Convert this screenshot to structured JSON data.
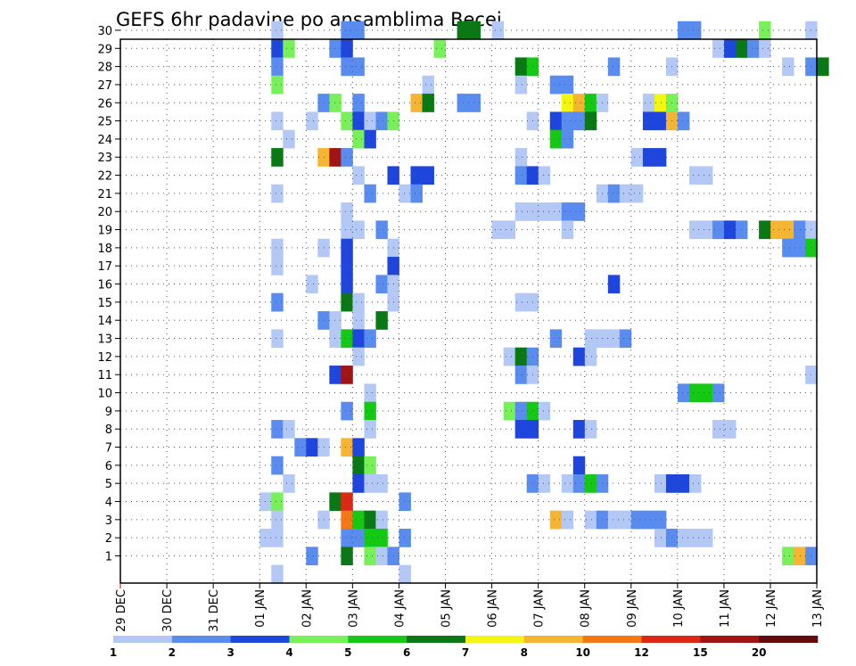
{
  "chart_data": {
    "type": "heatmap",
    "title": "GEFS 6hr padavine po ansamblima Becej",
    "y_ticks": [
      "1",
      "2",
      "3",
      "4",
      "5",
      "6",
      "7",
      "8",
      "9",
      "10",
      "11",
      "12",
      "13",
      "14",
      "15",
      "16",
      "17",
      "18",
      "19",
      "20",
      "21",
      "22",
      "23",
      "24",
      "25",
      "26",
      "27",
      "28",
      "29",
      "30"
    ],
    "x_ticks": [
      "29 DEC",
      "30 DEC",
      "31 DEC",
      "01 JAN",
      "02 JAN",
      "03 JAN",
      "04 JAN",
      "05 JAN",
      "06 JAN",
      "07 JAN",
      "08 JAN",
      "09 JAN",
      "10 JAN",
      "11 JAN",
      "12 JAN",
      "13 JAN"
    ],
    "x_unit": "6-hour step (4 steps per day)",
    "ylim": [
      0.5,
      30.5
    ],
    "grid": true,
    "colorbar": {
      "tick_labels": [
        "1",
        "2",
        "3",
        "4",
        "5",
        "6",
        "7",
        "8",
        "10",
        "12",
        "15",
        "20"
      ],
      "colors": [
        "#b4c8f5",
        "#5a8cf0",
        "#1e46dc",
        "#78f05a",
        "#14c814",
        "#0a7814",
        "#f5f514",
        "#f5b432",
        "#f57814",
        "#dc2814",
        "#a01414",
        "#640a0a"
      ]
    },
    "cells": [
      {
        "m": 30,
        "t": 13,
        "c": 1
      },
      {
        "m": 30,
        "t": 19,
        "c": 2
      },
      {
        "m": 30,
        "t": 20,
        "c": 2
      },
      {
        "m": 30,
        "t": 29,
        "c": 6
      },
      {
        "m": 30,
        "t": 30,
        "c": 6
      },
      {
        "m": 30,
        "t": 32,
        "c": 1
      },
      {
        "m": 30,
        "t": 48,
        "c": 2
      },
      {
        "m": 30,
        "t": 49,
        "c": 2
      },
      {
        "m": 30,
        "t": 55,
        "c": 4
      },
      {
        "m": 30,
        "t": 59,
        "c": 1
      },
      {
        "m": 29,
        "t": 13,
        "c": 3
      },
      {
        "m": 29,
        "t": 14,
        "c": 4
      },
      {
        "m": 29,
        "t": 18,
        "c": 2
      },
      {
        "m": 29,
        "t": 19,
        "c": 3
      },
      {
        "m": 29,
        "t": 27,
        "c": 4
      },
      {
        "m": 29,
        "t": 51,
        "c": 1
      },
      {
        "m": 29,
        "t": 52,
        "c": 3
      },
      {
        "m": 29,
        "t": 53,
        "c": 6
      },
      {
        "m": 29,
        "t": 54,
        "c": 2
      },
      {
        "m": 29,
        "t": 55,
        "c": 1
      },
      {
        "m": 28,
        "t": 13,
        "c": 2
      },
      {
        "m": 28,
        "t": 19,
        "c": 2
      },
      {
        "m": 28,
        "t": 20,
        "c": 2
      },
      {
        "m": 28,
        "t": 34,
        "c": 6
      },
      {
        "m": 28,
        "t": 35,
        "c": 5
      },
      {
        "m": 28,
        "t": 42,
        "c": 2
      },
      {
        "m": 28,
        "t": 47,
        "c": 1
      },
      {
        "m": 28,
        "t": 57,
        "c": 1
      },
      {
        "m": 28,
        "t": 59,
        "c": 2
      },
      {
        "m": 28,
        "t": 60,
        "c": 6
      },
      {
        "m": 27,
        "t": 13,
        "c": 4
      },
      {
        "m": 27,
        "t": 26,
        "c": 1
      },
      {
        "m": 27,
        "t": 34,
        "c": 1
      },
      {
        "m": 27,
        "t": 37,
        "c": 2
      },
      {
        "m": 27,
        "t": 38,
        "c": 2
      },
      {
        "m": 26,
        "t": 17,
        "c": 2
      },
      {
        "m": 26,
        "t": 18,
        "c": 4
      },
      {
        "m": 26,
        "t": 20,
        "c": 2
      },
      {
        "m": 26,
        "t": 25,
        "c": 8
      },
      {
        "m": 26,
        "t": 26,
        "c": 6
      },
      {
        "m": 26,
        "t": 29,
        "c": 2
      },
      {
        "m": 26,
        "t": 30,
        "c": 2
      },
      {
        "m": 26,
        "t": 38,
        "c": 7
      },
      {
        "m": 26,
        "t": 39,
        "c": 8
      },
      {
        "m": 26,
        "t": 40,
        "c": 5
      },
      {
        "m": 26,
        "t": 41,
        "c": 1
      },
      {
        "m": 26,
        "t": 45,
        "c": 1
      },
      {
        "m": 26,
        "t": 46,
        "c": 7
      },
      {
        "m": 26,
        "t": 47,
        "c": 4
      },
      {
        "m": 25,
        "t": 13,
        "c": 1
      },
      {
        "m": 25,
        "t": 16,
        "c": 1
      },
      {
        "m": 25,
        "t": 19,
        "c": 4
      },
      {
        "m": 25,
        "t": 20,
        "c": 3
      },
      {
        "m": 25,
        "t": 21,
        "c": 1
      },
      {
        "m": 25,
        "t": 22,
        "c": 2
      },
      {
        "m": 25,
        "t": 23,
        "c": 4
      },
      {
        "m": 25,
        "t": 35,
        "c": 1
      },
      {
        "m": 25,
        "t": 37,
        "c": 3
      },
      {
        "m": 25,
        "t": 38,
        "c": 2
      },
      {
        "m": 25,
        "t": 39,
        "c": 2
      },
      {
        "m": 25,
        "t": 40,
        "c": 6
      },
      {
        "m": 25,
        "t": 45,
        "c": 3
      },
      {
        "m": 25,
        "t": 46,
        "c": 3
      },
      {
        "m": 25,
        "t": 47,
        "c": 8
      },
      {
        "m": 25,
        "t": 48,
        "c": 2
      },
      {
        "m": 24,
        "t": 14,
        "c": 1
      },
      {
        "m": 24,
        "t": 20,
        "c": 4
      },
      {
        "m": 24,
        "t": 21,
        "c": 3
      },
      {
        "m": 24,
        "t": 37,
        "c": 5
      },
      {
        "m": 24,
        "t": 38,
        "c": 2
      },
      {
        "m": 23,
        "t": 13,
        "c": 6
      },
      {
        "m": 23,
        "t": 17,
        "c": 8
      },
      {
        "m": 23,
        "t": 18,
        "c": 11
      },
      {
        "m": 23,
        "t": 19,
        "c": 2
      },
      {
        "m": 23,
        "t": 34,
        "c": 1
      },
      {
        "m": 23,
        "t": 44,
        "c": 1
      },
      {
        "m": 23,
        "t": 45,
        "c": 3
      },
      {
        "m": 23,
        "t": 46,
        "c": 3
      },
      {
        "m": 22,
        "t": 20,
        "c": 1
      },
      {
        "m": 22,
        "t": 23,
        "c": 3
      },
      {
        "m": 22,
        "t": 25,
        "c": 3
      },
      {
        "m": 22,
        "t": 26,
        "c": 3
      },
      {
        "m": 22,
        "t": 34,
        "c": 2
      },
      {
        "m": 22,
        "t": 35,
        "c": 3
      },
      {
        "m": 22,
        "t": 36,
        "c": 1
      },
      {
        "m": 22,
        "t": 49,
        "c": 1
      },
      {
        "m": 22,
        "t": 50,
        "c": 1
      },
      {
        "m": 21,
        "t": 13,
        "c": 1
      },
      {
        "m": 21,
        "t": 21,
        "c": 2
      },
      {
        "m": 21,
        "t": 24,
        "c": 1
      },
      {
        "m": 21,
        "t": 25,
        "c": 2
      },
      {
        "m": 21,
        "t": 41,
        "c": 1
      },
      {
        "m": 21,
        "t": 42,
        "c": 2
      },
      {
        "m": 21,
        "t": 43,
        "c": 1
      },
      {
        "m": 21,
        "t": 44,
        "c": 1
      },
      {
        "m": 20,
        "t": 19,
        "c": 1
      },
      {
        "m": 20,
        "t": 34,
        "c": 1
      },
      {
        "m": 20,
        "t": 35,
        "c": 1
      },
      {
        "m": 20,
        "t": 36,
        "c": 1
      },
      {
        "m": 20,
        "t": 37,
        "c": 1
      },
      {
        "m": 20,
        "t": 38,
        "c": 2
      },
      {
        "m": 20,
        "t": 39,
        "c": 2
      },
      {
        "m": 19,
        "t": 19,
        "c": 1
      },
      {
        "m": 19,
        "t": 20,
        "c": 1
      },
      {
        "m": 19,
        "t": 22,
        "c": 2
      },
      {
        "m": 19,
        "t": 32,
        "c": 1
      },
      {
        "m": 19,
        "t": 33,
        "c": 1
      },
      {
        "m": 19,
        "t": 38,
        "c": 1
      },
      {
        "m": 19,
        "t": 49,
        "c": 1
      },
      {
        "m": 19,
        "t": 50,
        "c": 1
      },
      {
        "m": 19,
        "t": 51,
        "c": 2
      },
      {
        "m": 19,
        "t": 52,
        "c": 3
      },
      {
        "m": 19,
        "t": 53,
        "c": 2
      },
      {
        "m": 19,
        "t": 55,
        "c": 6
      },
      {
        "m": 19,
        "t": 56,
        "c": 8
      },
      {
        "m": 19,
        "t": 57,
        "c": 8
      },
      {
        "m": 19,
        "t": 58,
        "c": 2
      },
      {
        "m": 19,
        "t": 59,
        "c": 1
      },
      {
        "m": 18,
        "t": 13,
        "c": 1
      },
      {
        "m": 18,
        "t": 17,
        "c": 1
      },
      {
        "m": 18,
        "t": 19,
        "c": 3
      },
      {
        "m": 18,
        "t": 23,
        "c": 1
      },
      {
        "m": 18,
        "t": 57,
        "c": 2
      },
      {
        "m": 18,
        "t": 58,
        "c": 2
      },
      {
        "m": 18,
        "t": 59,
        "c": 5
      },
      {
        "m": 17,
        "t": 13,
        "c": 1
      },
      {
        "m": 17,
        "t": 19,
        "c": 3
      },
      {
        "m": 17,
        "t": 23,
        "c": 3
      },
      {
        "m": 16,
        "t": 16,
        "c": 1
      },
      {
        "m": 16,
        "t": 19,
        "c": 3
      },
      {
        "m": 16,
        "t": 22,
        "c": 2
      },
      {
        "m": 16,
        "t": 23,
        "c": 1
      },
      {
        "m": 16,
        "t": 42,
        "c": 3
      },
      {
        "m": 15,
        "t": 13,
        "c": 2
      },
      {
        "m": 15,
        "t": 19,
        "c": 6
      },
      {
        "m": 15,
        "t": 20,
        "c": 1
      },
      {
        "m": 15,
        "t": 23,
        "c": 1
      },
      {
        "m": 15,
        "t": 34,
        "c": 1
      },
      {
        "m": 15,
        "t": 35,
        "c": 1
      },
      {
        "m": 14,
        "t": 17,
        "c": 2
      },
      {
        "m": 14,
        "t": 18,
        "c": 1
      },
      {
        "m": 14,
        "t": 20,
        "c": 1
      },
      {
        "m": 14,
        "t": 22,
        "c": 6
      },
      {
        "m": 13,
        "t": 18,
        "c": 1
      },
      {
        "m": 13,
        "t": 19,
        "c": 1
      },
      {
        "m": 13,
        "t": 13,
        "c": 1
      },
      {
        "m": 13,
        "t": 19,
        "c": 5
      },
      {
        "m": 13,
        "t": 20,
        "c": 3
      },
      {
        "m": 13,
        "t": 21,
        "c": 2
      },
      {
        "m": 13,
        "t": 37,
        "c": 2
      },
      {
        "m": 13,
        "t": 40,
        "c": 1
      },
      {
        "m": 13,
        "t": 41,
        "c": 1
      },
      {
        "m": 13,
        "t": 42,
        "c": 1
      },
      {
        "m": 13,
        "t": 43,
        "c": 2
      },
      {
        "m": 12,
        "t": 20,
        "c": 1
      },
      {
        "m": 12,
        "t": 33,
        "c": 1
      },
      {
        "m": 12,
        "t": 34,
        "c": 6
      },
      {
        "m": 12,
        "t": 35,
        "c": 2
      },
      {
        "m": 12,
        "t": 39,
        "c": 3
      },
      {
        "m": 12,
        "t": 40,
        "c": 1
      },
      {
        "m": 11,
        "t": 18,
        "c": 3
      },
      {
        "m": 11,
        "t": 19,
        "c": 11
      },
      {
        "m": 11,
        "t": 34,
        "c": 2
      },
      {
        "m": 11,
        "t": 35,
        "c": 1
      },
      {
        "m": 11,
        "t": 59,
        "c": 1
      },
      {
        "m": 10,
        "t": 21,
        "c": 1
      },
      {
        "m": 10,
        "t": 48,
        "c": 2
      },
      {
        "m": 10,
        "t": 49,
        "c": 5
      },
      {
        "m": 10,
        "t": 50,
        "c": 5
      },
      {
        "m": 10,
        "t": 51,
        "c": 2
      },
      {
        "m": 9,
        "t": 19,
        "c": 2
      },
      {
        "m": 9,
        "t": 21,
        "c": 5
      },
      {
        "m": 9,
        "t": 33,
        "c": 4
      },
      {
        "m": 9,
        "t": 34,
        "c": 2
      },
      {
        "m": 9,
        "t": 35,
        "c": 5
      },
      {
        "m": 9,
        "t": 36,
        "c": 1
      },
      {
        "m": 8,
        "t": 13,
        "c": 2
      },
      {
        "m": 8,
        "t": 14,
        "c": 1
      },
      {
        "m": 8,
        "t": 21,
        "c": 1
      },
      {
        "m": 8,
        "t": 34,
        "c": 3
      },
      {
        "m": 8,
        "t": 35,
        "c": 3
      },
      {
        "m": 8,
        "t": 39,
        "c": 3
      },
      {
        "m": 8,
        "t": 40,
        "c": 1
      },
      {
        "m": 8,
        "t": 51,
        "c": 1
      },
      {
        "m": 8,
        "t": 52,
        "c": 1
      },
      {
        "m": 7,
        "t": 15,
        "c": 2
      },
      {
        "m": 7,
        "t": 16,
        "c": 3
      },
      {
        "m": 7,
        "t": 17,
        "c": 1
      },
      {
        "m": 7,
        "t": 19,
        "c": 8
      },
      {
        "m": 7,
        "t": 20,
        "c": 3
      },
      {
        "m": 6,
        "t": 13,
        "c": 2
      },
      {
        "m": 6,
        "t": 20,
        "c": 6
      },
      {
        "m": 6,
        "t": 21,
        "c": 4
      },
      {
        "m": 6,
        "t": 39,
        "c": 3
      },
      {
        "m": 5,
        "t": 14,
        "c": 1
      },
      {
        "m": 5,
        "t": 20,
        "c": 3
      },
      {
        "m": 5,
        "t": 21,
        "c": 1
      },
      {
        "m": 5,
        "t": 22,
        "c": 1
      },
      {
        "m": 5,
        "t": 35,
        "c": 2
      },
      {
        "m": 5,
        "t": 36,
        "c": 1
      },
      {
        "m": 5,
        "t": 38,
        "c": 1
      },
      {
        "m": 5,
        "t": 39,
        "c": 2
      },
      {
        "m": 5,
        "t": 40,
        "c": 5
      },
      {
        "m": 5,
        "t": 41,
        "c": 2
      },
      {
        "m": 5,
        "t": 46,
        "c": 1
      },
      {
        "m": 5,
        "t": 47,
        "c": 3
      },
      {
        "m": 5,
        "t": 48,
        "c": 3
      },
      {
        "m": 5,
        "t": 49,
        "c": 1
      },
      {
        "m": 4,
        "t": 12,
        "c": 1
      },
      {
        "m": 4,
        "t": 13,
        "c": 4
      },
      {
        "m": 4,
        "t": 18,
        "c": 6
      },
      {
        "m": 4,
        "t": 19,
        "c": 10
      },
      {
        "m": 4,
        "t": 24,
        "c": 2
      },
      {
        "m": 3,
        "t": 13,
        "c": 1
      },
      {
        "m": 3,
        "t": 17,
        "c": 1
      },
      {
        "m": 3,
        "t": 19,
        "c": 9
      },
      {
        "m": 3,
        "t": 20,
        "c": 5
      },
      {
        "m": 3,
        "t": 21,
        "c": 6
      },
      {
        "m": 3,
        "t": 22,
        "c": 1
      },
      {
        "m": 3,
        "t": 37,
        "c": 8
      },
      {
        "m": 3,
        "t": 38,
        "c": 1
      },
      {
        "m": 3,
        "t": 40,
        "c": 1
      },
      {
        "m": 3,
        "t": 41,
        "c": 2
      },
      {
        "m": 3,
        "t": 42,
        "c": 1
      },
      {
        "m": 3,
        "t": 43,
        "c": 1
      },
      {
        "m": 3,
        "t": 44,
        "c": 2
      },
      {
        "m": 3,
        "t": 45,
        "c": 2
      },
      {
        "m": 3,
        "t": 46,
        "c": 2
      },
      {
        "m": 2,
        "t": 12,
        "c": 1
      },
      {
        "m": 2,
        "t": 13,
        "c": 1
      },
      {
        "m": 2,
        "t": 19,
        "c": 2
      },
      {
        "m": 2,
        "t": 20,
        "c": 2
      },
      {
        "m": 2,
        "t": 21,
        "c": 5
      },
      {
        "m": 2,
        "t": 22,
        "c": 5
      },
      {
        "m": 2,
        "t": 24,
        "c": 2
      },
      {
        "m": 2,
        "t": 46,
        "c": 1
      },
      {
        "m": 2,
        "t": 47,
        "c": 2
      },
      {
        "m": 2,
        "t": 48,
        "c": 1
      },
      {
        "m": 2,
        "t": 49,
        "c": 1
      },
      {
        "m": 2,
        "t": 50,
        "c": 1
      },
      {
        "m": 1,
        "t": 16,
        "c": 2
      },
      {
        "m": 1,
        "t": 19,
        "c": 6
      },
      {
        "m": 1,
        "t": 21,
        "c": 4
      },
      {
        "m": 1,
        "t": 22,
        "c": 1
      },
      {
        "m": 1,
        "t": 23,
        "c": 2
      },
      {
        "m": 1,
        "t": 57,
        "c": 4
      },
      {
        "m": 1,
        "t": 58,
        "c": 8
      },
      {
        "m": 1,
        "t": 59,
        "c": 2
      },
      {
        "m": 0,
        "t": 13,
        "c": 1
      },
      {
        "m": 0,
        "t": 24,
        "c": 1
      }
    ]
  }
}
